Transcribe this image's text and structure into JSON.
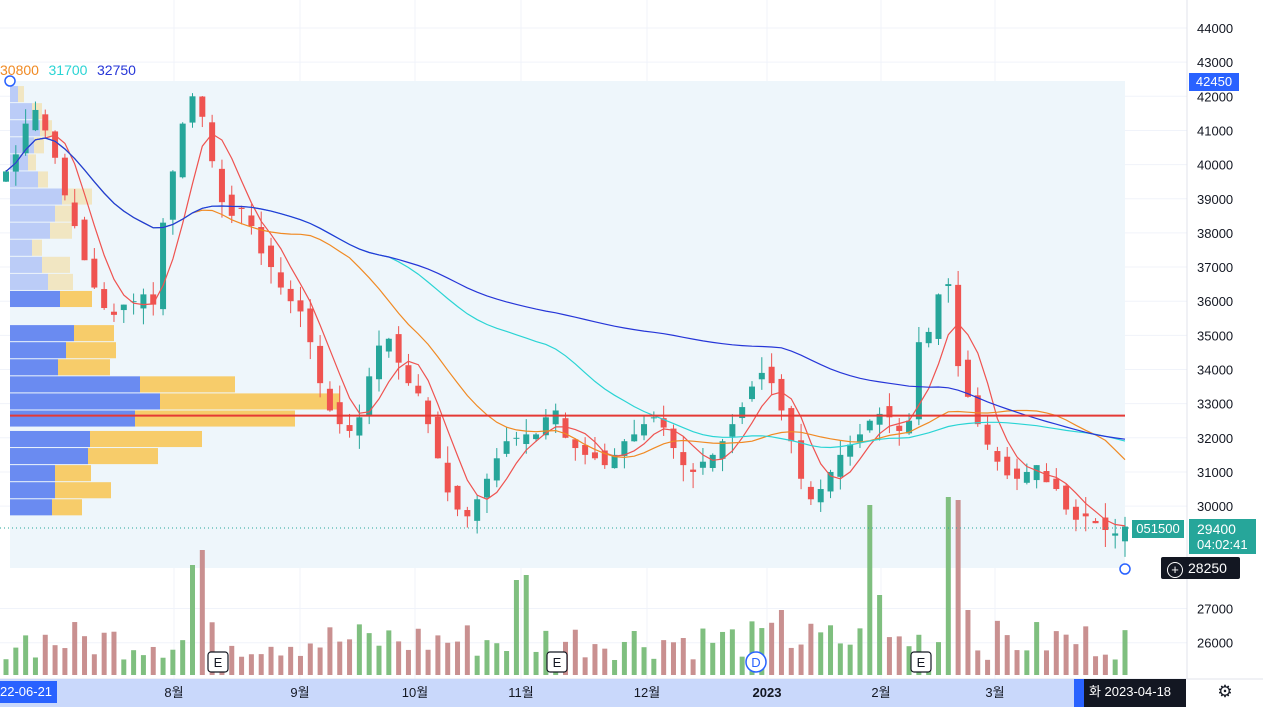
{
  "symbol_code": "051500",
  "ma_legend": [
    {
      "value": "30800",
      "color": "#f08a24"
    },
    {
      "value": "31700",
      "color": "#2ad4d4"
    },
    {
      "value": "32750",
      "color": "#2636d8"
    }
  ],
  "price_axis": {
    "ticks": [
      "44000",
      "43000",
      "42000",
      "41000",
      "40000",
      "39000",
      "38000",
      "37000",
      "36000",
      "35000",
      "34000",
      "33000",
      "32000",
      "31000",
      "30000",
      "27000",
      "26000"
    ],
    "tick_values": [
      44000,
      43000,
      42000,
      41000,
      40000,
      39000,
      38000,
      37000,
      36000,
      35000,
      34000,
      33000,
      32000,
      31000,
      30000,
      27000,
      26000
    ],
    "range_high_label": "42450",
    "current_price": "29400",
    "countdown": "04:02:41",
    "crosshair_price": "28250"
  },
  "time_axis": {
    "start_label": "22-06-21",
    "months": [
      "8월",
      "9월",
      "10월",
      "11월",
      "12월",
      "2023",
      "2월",
      "3월"
    ],
    "cursor_date": "화 2023-04-18"
  },
  "event_markers": [
    "E",
    "E",
    "D",
    "E"
  ],
  "horizontal_line_price": 32650,
  "colors": {
    "up": "#26a69a",
    "down": "#ef5350",
    "up_volume": "#7fbf7f",
    "down_volume": "#c99090",
    "hline": "#e53935",
    "profile_blue": "#5b7ff0",
    "profile_yellow": "#f7c85a",
    "range_bg": "#eef6fb"
  },
  "chart_data": {
    "type": "candlestick",
    "x_start": "2022-06-21",
    "x_end": "2023-04-18",
    "ylim": [
      25500,
      44300
    ],
    "closes": [
      39800,
      40300,
      41200,
      41600,
      41000,
      40200,
      39100,
      38200,
      37200,
      36400,
      35800,
      35600,
      35900,
      36000,
      36200,
      35900,
      38300,
      39800,
      41200,
      42000,
      41400,
      40100,
      38900,
      38500,
      38700,
      38200,
      37400,
      37000,
      36400,
      36000,
      35700,
      34800,
      33600,
      32800,
      32400,
      32200,
      32600,
      33800,
      34700,
      34900,
      34200,
      33600,
      33300,
      32400,
      31400,
      30400,
      29900,
      29700,
      30200,
      30800,
      31400,
      31900,
      32000,
      32100,
      32100,
      32600,
      32800,
      32000,
      31700,
      31500,
      31400,
      31200,
      31500,
      31900,
      32100,
      32400,
      32600,
      32300,
      31700,
      31200,
      31000,
      31300,
      31500,
      31900,
      32400,
      32900,
      33500,
      33900,
      33600,
      32800,
      31900,
      30800,
      30200,
      30500,
      31000,
      31500,
      31800,
      32100,
      32500,
      32700,
      32600,
      32200,
      32500,
      34800,
      35100,
      36200,
      36500,
      34100,
      33200,
      32400,
      31800,
      31300,
      30900,
      30800,
      31000,
      31200,
      30700,
      30500,
      29900,
      29600,
      29700,
      29500,
      29300,
      29200,
      29400
    ]
  }
}
